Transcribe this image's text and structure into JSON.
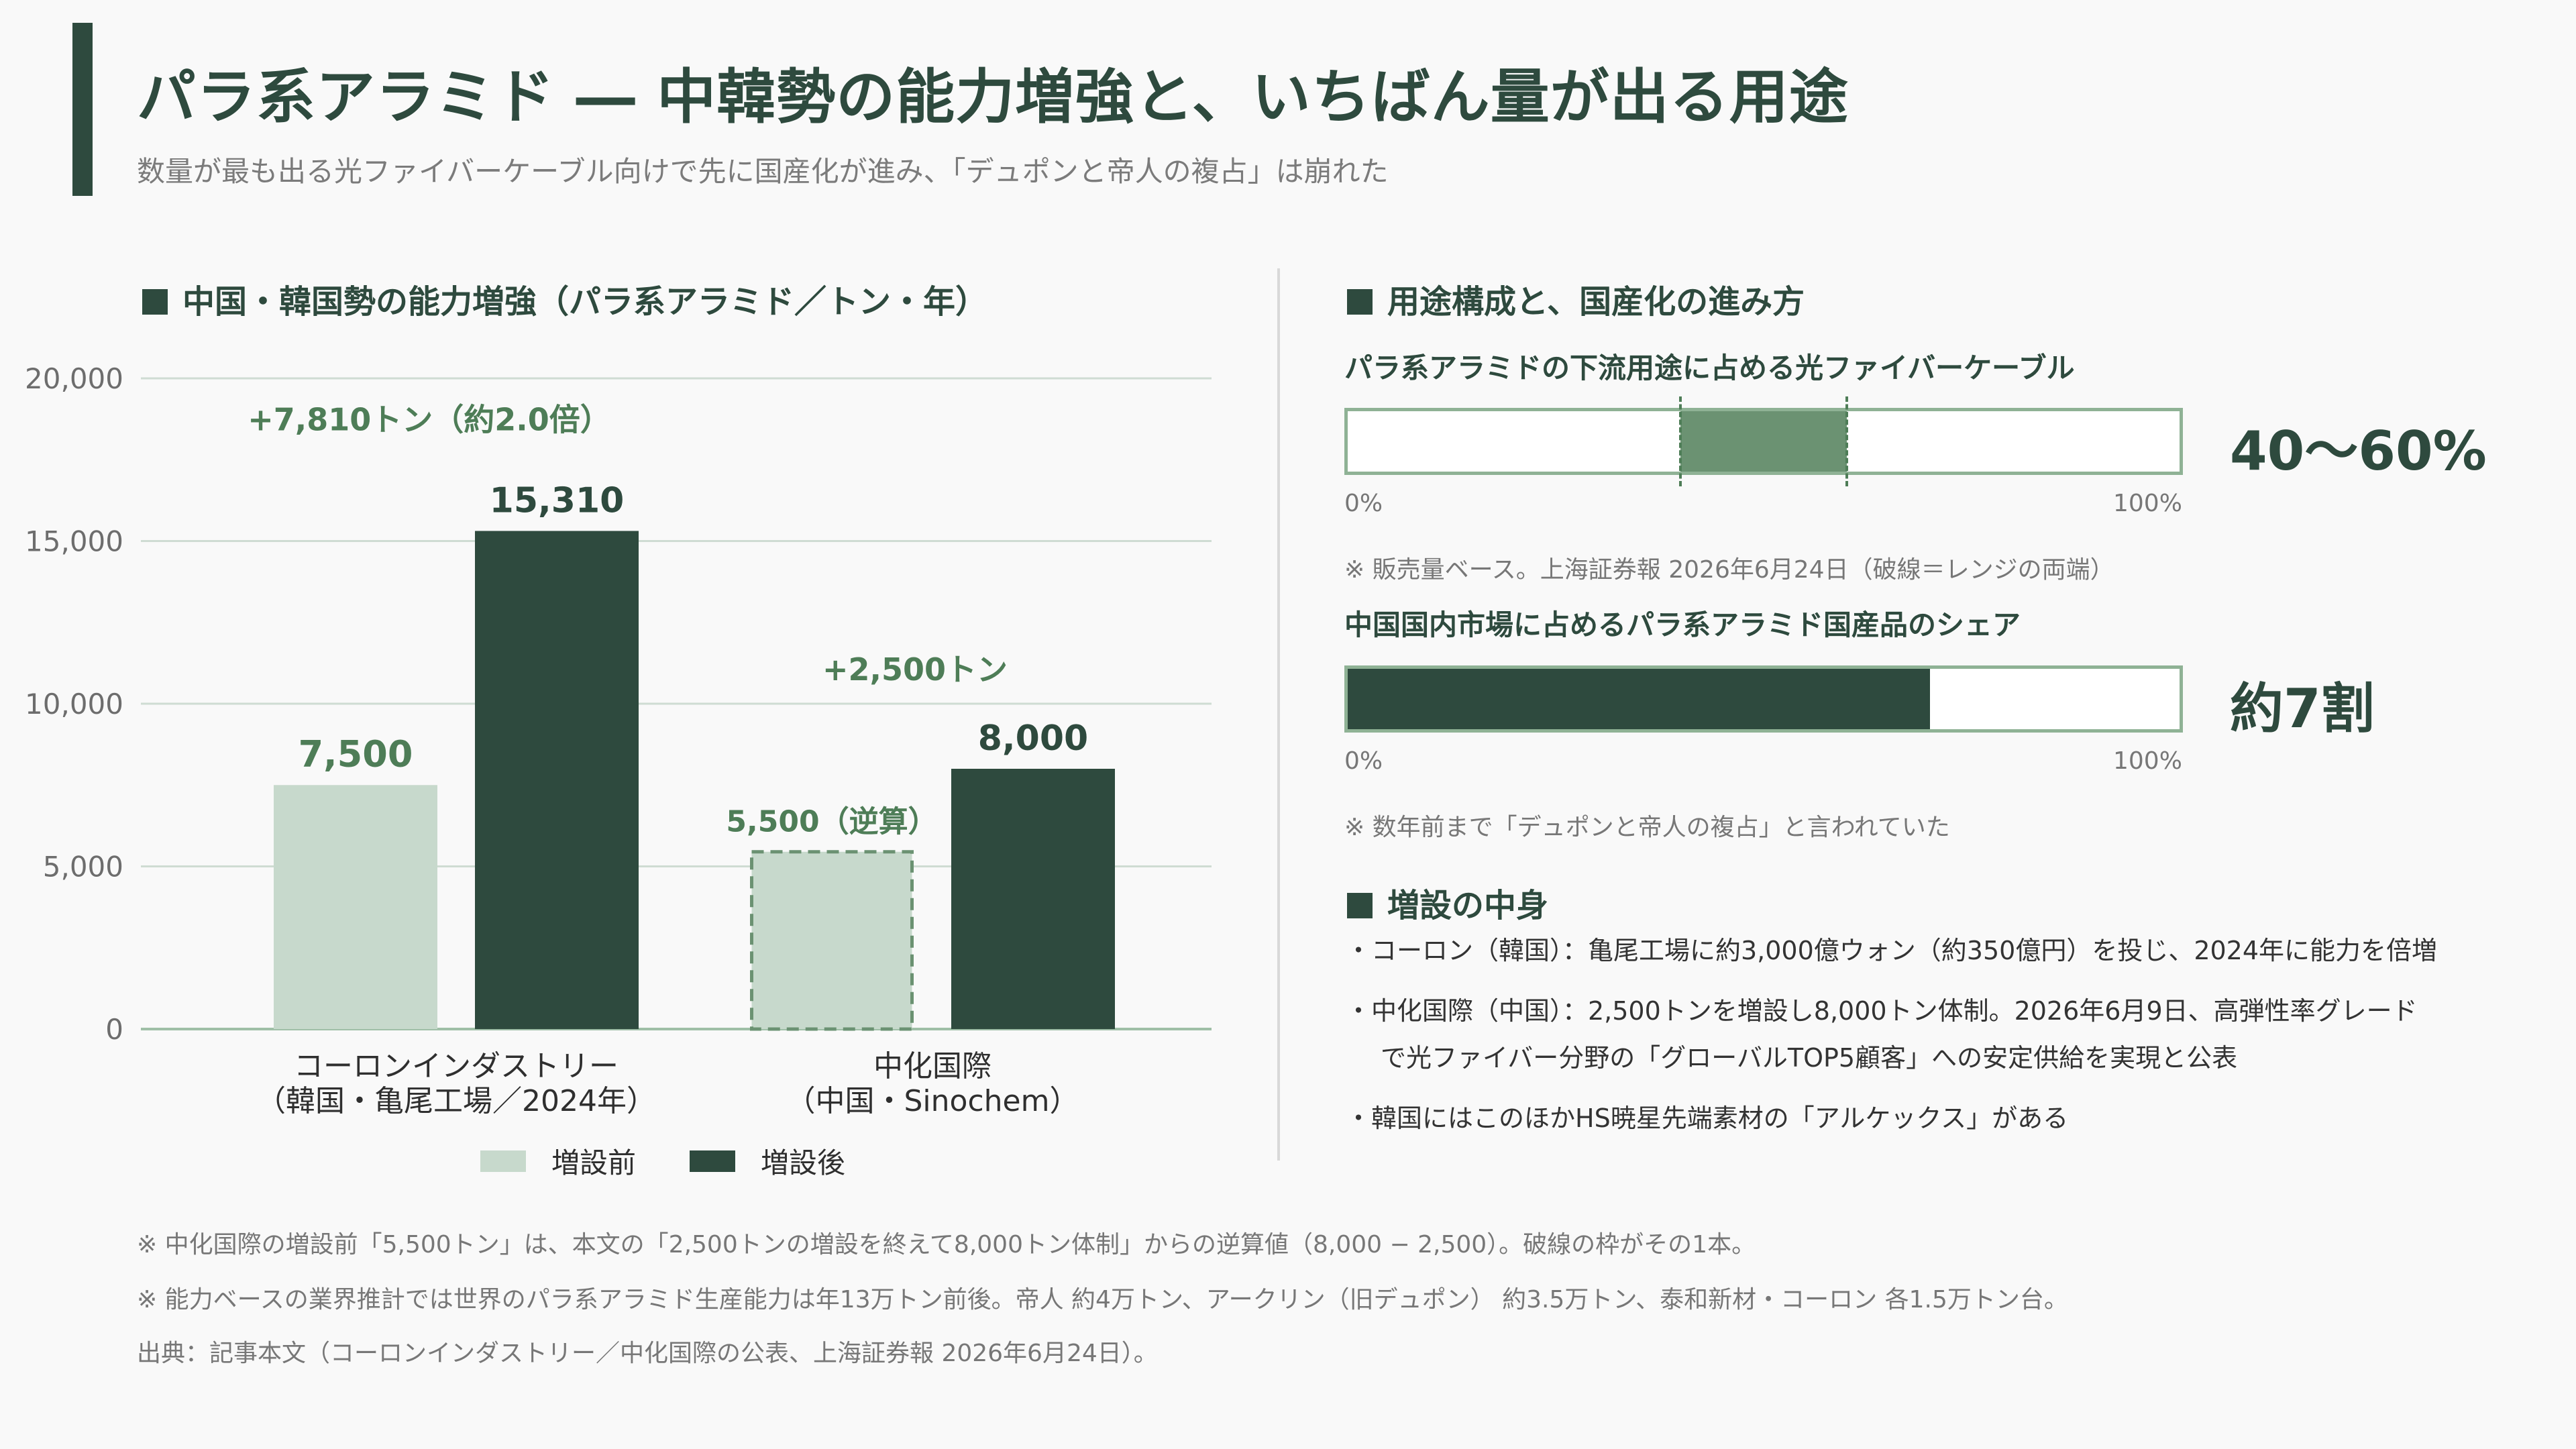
{
  "header": {
    "title": "パラ系アラミド ― 中韓勢の能力増強と、いちばん量が出る用途",
    "subtitle": "数量が最も出る光ファイバーケーブル向けで先に国産化が進み、「デュポンと帝人の複占」は崩れた"
  },
  "left": {
    "heading": "中国・韓国勢の能力増強（パラ系アラミド／トン・年）"
  },
  "chart_data": {
    "type": "bar",
    "title": "中国・韓国勢の能力増強（パラ系アラミド／トン・年）",
    "ylim": [
      0,
      20000
    ],
    "yticks": [
      "0",
      "5,000",
      "10,000",
      "15,000",
      "20,000"
    ],
    "ytick_values": [
      0,
      5000,
      10000,
      15000,
      20000
    ],
    "categories": [
      [
        "コーロンインダストリー",
        "（韓国・亀尾工場／2024年）"
      ],
      [
        "中化国際",
        "（中国・Sinochem）"
      ]
    ],
    "series": [
      {
        "name": "増設前",
        "color": "#c7d9cc",
        "values": [
          7500,
          5500
        ],
        "labels": [
          "7,500",
          "5,500（逆算）"
        ],
        "dashed": [
          false,
          true
        ]
      },
      {
        "name": "増設後",
        "color": "#2e4a3e",
        "values": [
          15310,
          8000
        ],
        "labels": [
          "15,310",
          "8,000"
        ],
        "dashed": [
          false,
          false
        ]
      }
    ],
    "annotations": [
      "+7,810トン（約2.0倍）",
      "+2,500トン"
    ],
    "legend": "bottom"
  },
  "right": {
    "heading": "用途構成と、国産化の進み方",
    "bar1": {
      "label": "パラ系アラミドの下流用途に占める光ファイバーケーブル",
      "range_low": 0.4,
      "range_high": 0.6,
      "value_text": "40〜60%",
      "scale_min": "0%",
      "scale_max": "100%",
      "note": "※ 販売量ベース。上海証券報 2026年6月24日（破線＝レンジの両端）"
    },
    "bar2": {
      "label": "中国国内市場に占めるパラ系アラミド国産品のシェア",
      "fill": 0.7,
      "value_text": "約7割",
      "scale_min": "0%",
      "scale_max": "100%",
      "note": "※ 数年前まで「デュポンと帝人の複占」と言われていた"
    },
    "details_heading": "増設の中身",
    "details": [
      "・コーロン（韓国）：亀尾工場に約3,000億ウォン（約350億円）を投じ、2024年に能力を倍増",
      "・中化国際（中国）：2,500トンを増設し8,000トン体制。2026年6月9日、高弾性率グレード",
      "で光ファイバー分野の「グローバルTOP5顧客」への安定供給を実現と公表",
      "・韓国にはこのほかHS暁星先端素材の「アルケックス」がある"
    ]
  },
  "footer": {
    "note1": "※ 中化国際の増設前「5,500トン」は、本文の「2,500トンの増設を終えて8,000トン体制」からの逆算値（8,000 − 2,500）。破線の枠がその1本。",
    "note2": "※ 能力ベースの業界推計では世界のパラ系アラミド生産能力は年13万トン前後。帝人 約4万トン、アークリン（旧デュポン） 約3.5万トン、泰和新材・コーロン 各1.5万トン台。",
    "source": "出典：記事本文（コーロンインダストリー／中化国際の公表、上海証券報 2026年6月24日）。"
  },
  "colors": {
    "dark": "#2e4a3e",
    "light": "#c7d9cc",
    "mid": "#6b9272",
    "accent_text": "#4e7d57"
  }
}
